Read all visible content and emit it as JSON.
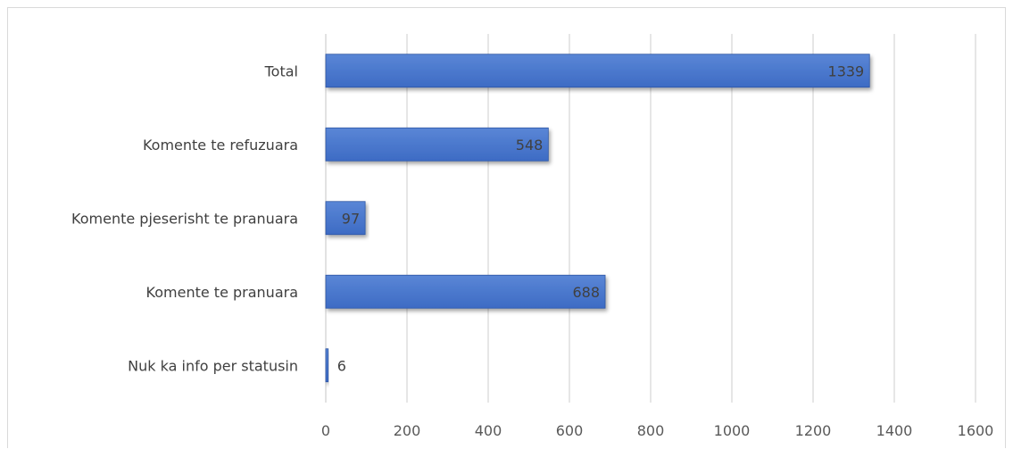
{
  "colors": {
    "bar_fill_top": "#5a86d6",
    "bar_fill_bottom": "#3d6bc4",
    "bar_stroke": "#2e56a3",
    "gridline": "#d9d9d9",
    "text": "#404040"
  },
  "chart_data": {
    "type": "bar",
    "orientation": "horizontal",
    "categories": [
      "Total",
      "Komente te refuzuara",
      "Komente pjeserisht te pranuara",
      "Komente te pranuara",
      "Nuk ka info per statusin"
    ],
    "values": [
      1339,
      548,
      97,
      688,
      6
    ],
    "data_labels": [
      "1339",
      "548",
      "97",
      "688",
      "6"
    ],
    "xlim": [
      0,
      1600
    ],
    "xticks": [
      0,
      200,
      400,
      600,
      800,
      1000,
      1200,
      1400,
      1600
    ],
    "xtick_labels": [
      "0",
      "200",
      "400",
      "600",
      "800",
      "1000",
      "1200",
      "1400",
      "1600"
    ],
    "title": "",
    "xlabel": "",
    "ylabel": "",
    "grid": "vertical",
    "legend": "none"
  }
}
